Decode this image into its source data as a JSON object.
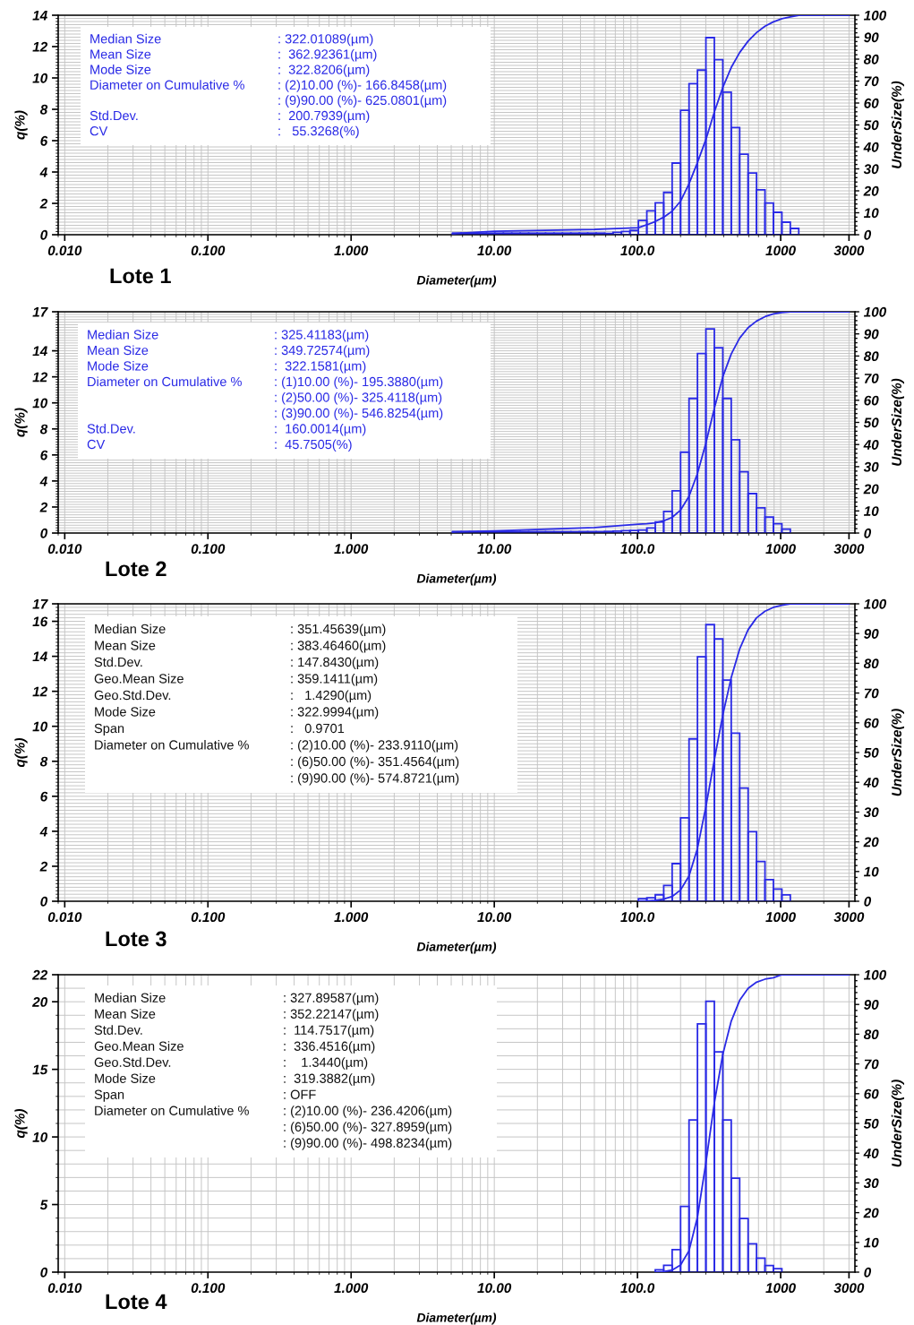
{
  "chart_data": [
    {
      "type": "histogram",
      "title": "Lote 1",
      "xlabel": "Diameter(µm)",
      "ylabel": "q(%)",
      "y2label": "UnderSize(%)",
      "log": "x",
      "grid": true,
      "color": "#2a2ae6",
      "bins": [
        5.122,
        5.867,
        6.72,
        7.697,
        8.816,
        10.097,
        11.565,
        13.246,
        15.172,
        17.377,
        19.904,
        22.797,
        26.111,
        29.907,
        34.255,
        39.234,
        44.938,
        51.471,
        58.953,
        67.523,
        77.339,
        88.583,
        101.46,
        116.21,
        133.1,
        152.45,
        174.62,
        200,
        229.07,
        262.37,
        300.52,
        344.21,
        394.25,
        451.56,
        517.2,
        592.39,
        678.5,
        777.14,
        890.11,
        1019.5,
        1167.7,
        1337.5
      ],
      "values": [
        0.1,
        0.1,
        0.1,
        0.1,
        0.1,
        0.1,
        0.1,
        0.1,
        0.1,
        0.1,
        0.1,
        0.1,
        0.1,
        0.1,
        0.1,
        0.1,
        0.1,
        0.1,
        0.08,
        0.15,
        0.21,
        0.27,
        0.91,
        1.52,
        2.04,
        2.7,
        4.57,
        7.94,
        9.64,
        10.5,
        12.57,
        11.16,
        9.09,
        6.84,
        5.14,
        3.94,
        2.86,
        2.02,
        1.43,
        0.8,
        0.4
      ],
      "series": [
        {
          "type": "line",
          "axis": "y2",
          "color": "#2a2ae6",
          "x": [
            5.1,
            10,
            50,
            101.46,
            116.21,
            133.1,
            152.45,
            174.62,
            200,
            229.07,
            262.37,
            300.52,
            344.21,
            394.25,
            451.56,
            517.2,
            592.39,
            678.5,
            777.14,
            890.11,
            1019.5,
            1167.7,
            1337.5,
            3000
          ],
          "values": [
            0.5,
            1.6,
            2.4,
            3.2,
            4.5,
            6.0,
            8.0,
            10.7,
            15.3,
            23.2,
            32.9,
            43.4,
            55.9,
            67.1,
            76.2,
            83.0,
            88.2,
            92.1,
            95.0,
            97.0,
            98.4,
            99.2,
            100,
            100
          ]
        }
      ],
      "xlim": [
        0.009,
        3300
      ],
      "xticks": [
        {
          "value": 0.01,
          "label": "0.010"
        },
        {
          "value": 0.1,
          "label": "0.100"
        },
        {
          "value": 1,
          "label": "1.000"
        },
        {
          "value": 10,
          "label": "10.00"
        },
        {
          "value": 100,
          "label": "100.0"
        },
        1000,
        3000
      ],
      "ylim": [
        0,
        14
      ],
      "yticks": [
        0,
        2,
        4,
        6,
        8,
        10,
        12,
        14
      ],
      "y2lim": [
        0,
        100
      ],
      "y2ticks": [
        0,
        10,
        20,
        30,
        40,
        50,
        60,
        70,
        80,
        90,
        100
      ],
      "annotations": [
        "Median Size\t: 322.01089(µm)",
        "Mean Size\t:  362.92361(µm)",
        "Mode Size\t:  322.8206(µm)",
        "Diameter on Cumulative %\t: (2)10.00 (%)- 166.8458(µm)",
        "\t: (9)90.00 (%)- 625.0801(µm)",
        "Std.Dev.\t:  200.7939(µm)",
        "CV\t:   55.3268(%)"
      ]
    },
    {
      "type": "histogram",
      "title": "Lote 2",
      "xlabel": "Diameter(µm)",
      "ylabel": "q(%)",
      "y2label": "UnderSize(%)",
      "log": "x",
      "grid": true,
      "color": "#2a2ae6",
      "bins": [
        5.122,
        5.867,
        6.72,
        7.697,
        8.816,
        10.097,
        11.565,
        13.246,
        15.172,
        17.377,
        19.904,
        22.797,
        26.111,
        29.907,
        34.255,
        39.234,
        44.938,
        51.471,
        58.953,
        67.523,
        77.339,
        88.583,
        101.46,
        116.21,
        133.1,
        152.45,
        174.62,
        200,
        229.07,
        262.37,
        300.52,
        344.21,
        394.25,
        451.56,
        517.2,
        592.39,
        678.5,
        777.14,
        890.11,
        1019.5,
        1167.7
      ],
      "values": [
        0.1,
        0.1,
        0.1,
        0.1,
        0.1,
        0.1,
        0.1,
        0.1,
        0.1,
        0.1,
        0.1,
        0.1,
        0.1,
        0.1,
        0.1,
        0.1,
        0.1,
        0.1,
        0.12,
        0.15,
        0.18,
        0.2,
        0.23,
        0.39,
        0.85,
        1.66,
        3.24,
        6.21,
        10.34,
        13.79,
        15.68,
        14.23,
        10.34,
        7.17,
        4.71,
        3.03,
        1.93,
        1.22,
        0.71,
        0.3
      ],
      "series": [
        {
          "type": "line",
          "axis": "y2",
          "color": "#2a2ae6",
          "x": [
            5.1,
            10,
            50,
            101.46,
            116.21,
            133.1,
            152.45,
            174.62,
            200,
            229.07,
            262.37,
            300.52,
            344.21,
            394.25,
            451.56,
            517.2,
            592.39,
            678.5,
            777.14,
            890.11,
            1019.5,
            1167.7,
            3000
          ],
          "values": [
            0.5,
            1.0,
            2.5,
            4.0,
            4.2,
            4.6,
            5.5,
            7.1,
            10.4,
            16.6,
            26.9,
            40.7,
            56.4,
            70.6,
            80.9,
            88.1,
            92.8,
            95.8,
            97.8,
            99.0,
            99.7,
            100,
            100
          ]
        }
      ],
      "xlim": [
        0.009,
        3300
      ],
      "xticks": [
        {
          "value": 0.01,
          "label": "0.010"
        },
        {
          "value": 0.1,
          "label": "0.100"
        },
        {
          "value": 1,
          "label": "1.000"
        },
        {
          "value": 10,
          "label": "10.00"
        },
        {
          "value": 100,
          "label": "100.0"
        },
        1000,
        3000
      ],
      "ylim": [
        0,
        17
      ],
      "yticks": [
        0,
        2,
        4,
        6,
        8,
        10,
        12,
        14,
        17
      ],
      "y2lim": [
        0,
        100
      ],
      "y2ticks": [
        0,
        10,
        20,
        30,
        40,
        50,
        60,
        70,
        80,
        90,
        100
      ],
      "annotations": [
        "Median Size\t: 325.41183(µm)",
        "Mean Size\t: 349.72574(µm)",
        "Mode Size\t:  322.1581(µm)",
        "Diameter on Cumulative %\t: (1)10.00 (%)- 195.3880(µm)",
        "\t: (2)50.00 (%)- 325.4118(µm)",
        "\t: (3)90.00 (%)- 546.8254(µm)",
        "Std.Dev.\t:  160.0014(µm)",
        "CV\t:  45.7505(%)"
      ]
    },
    {
      "type": "histogram",
      "title": "Lote 3",
      "xlabel": "Diameter(µm)",
      "ylabel": "q(%)",
      "y2label": "UnderSize(%)",
      "log": "x",
      "grid": true,
      "color": "#2a2ae6",
      "bins": [
        101.46,
        116.21,
        133.1,
        152.45,
        174.62,
        200,
        229.07,
        262.37,
        300.52,
        344.21,
        394.25,
        451.56,
        517.2,
        592.39,
        678.5,
        777.14,
        890.11,
        1019.5,
        1167.7
      ],
      "values": [
        0.14,
        0.2,
        0.37,
        0.9,
        2.15,
        4.77,
        9.28,
        13.97,
        15.81,
        14.99,
        12.64,
        9.61,
        6.47,
        3.97,
        2.27,
        1.24,
        0.7,
        0.36
      ],
      "series": [
        {
          "type": "line",
          "axis": "y2",
          "color": "#2a2ae6",
          "x": [
            101.46,
            116.21,
            133.1,
            152.45,
            174.62,
            200,
            229.07,
            262.37,
            300.52,
            344.21,
            394.25,
            451.56,
            517.2,
            592.39,
            678.5,
            777.14,
            890.11,
            1019.5,
            1167.7,
            3000
          ],
          "values": [
            0,
            0.1,
            0.3,
            0.7,
            1.6,
            3.8,
            8.5,
            17.8,
            31.8,
            47.6,
            62.6,
            75.2,
            84.8,
            91.3,
            95.3,
            97.5,
            98.8,
            99.5,
            100,
            100
          ]
        }
      ],
      "xlim": [
        0.009,
        3300
      ],
      "xticks": [
        {
          "value": 0.01,
          "label": "0.010"
        },
        {
          "value": 0.1,
          "label": "0.100"
        },
        {
          "value": 1,
          "label": "1.000"
        },
        {
          "value": 10,
          "label": "10.00"
        },
        {
          "value": 100,
          "label": "100.0"
        },
        1000,
        3000
      ],
      "ylim": [
        0,
        17
      ],
      "yticks": [
        0,
        2,
        4,
        6,
        8,
        10,
        12,
        14,
        16,
        17
      ],
      "y2lim": [
        0,
        100
      ],
      "y2ticks": [
        0,
        10,
        20,
        30,
        40,
        50,
        60,
        70,
        80,
        90,
        100
      ],
      "annotations": [
        "Median Size\t: 351.45639(µm)",
        "Mean Size\t: 383.46460(µm)",
        "Std.Dev.\t: 147.8430(µm)",
        "Geo.Mean Size\t: 359.1411(µm)",
        "Geo.Std.Dev.\t:   1.4290(µm)",
        "Mode Size\t: 322.9994(µm)",
        "Span\t:   0.9701",
        "Diameter on Cumulative %\t: (2)10.00 (%)- 233.9110(µm)",
        "\t: (6)50.00 (%)- 351.4564(µm)",
        "\t: (9)90.00 (%)- 574.8721(µm)"
      ]
    },
    {
      "type": "histogram",
      "title": "Lote 4",
      "xlabel": "Diameter(µm)",
      "ylabel": "q(%)",
      "y2label": "UnderSize(%)",
      "log": "x",
      "grid": true,
      "color": "#2a2ae6",
      "bins": [
        133.1,
        152.45,
        174.62,
        200,
        229.07,
        262.37,
        300.52,
        344.21,
        394.25,
        451.56,
        517.2,
        592.39,
        678.5,
        777.14,
        890.11,
        1019.5
      ],
      "values": [
        0.18,
        0.51,
        1.66,
        4.86,
        11.26,
        18.37,
        20.04,
        16.29,
        11.26,
        6.95,
        3.97,
        2.1,
        1.04,
        0.49,
        0.26
      ],
      "series": [
        {
          "type": "line",
          "axis": "y2",
          "color": "#2a2ae6",
          "x": [
            133.1,
            152.45,
            174.62,
            200,
            229.07,
            262.37,
            300.52,
            344.21,
            394.25,
            451.56,
            517.2,
            592.39,
            678.5,
            777.14,
            890.11,
            1019.5,
            3000
          ],
          "values": [
            0,
            0.2,
            0.7,
            2.4,
            7.2,
            18.5,
            36.8,
            56.9,
            73.2,
            84.4,
            91.4,
            95.4,
            97.5,
            98.5,
            99.0,
            100,
            100
          ]
        }
      ],
      "xlim": [
        0.009,
        3300
      ],
      "xticks": [
        {
          "value": 0.01,
          "label": "0.010"
        },
        {
          "value": 0.1,
          "label": "0.100"
        },
        {
          "value": 1,
          "label": "1.000"
        },
        {
          "value": 10,
          "label": "10.00"
        },
        {
          "value": 100,
          "label": "100.0"
        },
        1000,
        3000
      ],
      "ylim": [
        0,
        22
      ],
      "yticks": [
        0,
        5,
        10,
        15,
        20,
        22
      ],
      "y2lim": [
        0,
        100
      ],
      "y2ticks": [
        0,
        10,
        20,
        30,
        40,
        50,
        60,
        70,
        80,
        90,
        100
      ],
      "annotations": [
        "Median Size\t: 327.89587(µm)",
        "Mean Size\t: 352.22147(µm)",
        "Std.Dev.\t:  114.7517(µm)",
        "Geo.Mean Size\t:  336.4516(µm)",
        "Geo.Std.Dev.\t:    1.3440(µm)",
        "Mode Size\t:  319.3882(µm)",
        "Span\t: OFF",
        "Diameter on Cumulative %\t: (2)10.00 (%)- 236.4206(µm)",
        "\t: (6)50.00 (%)- 327.8959(µm)",
        "\t: (9)90.00 (%)- 498.8234(µm)"
      ]
    }
  ]
}
